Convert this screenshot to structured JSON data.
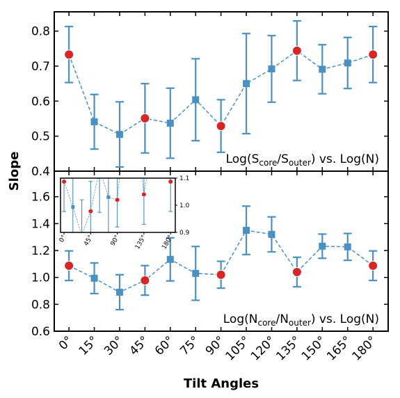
{
  "chart_data": [
    {
      "type": "errorbar",
      "ylabel": "Slope",
      "annotation": [
        "Log(S",
        "core",
        "/S",
        "outer",
        ") vs. Log(N)"
      ],
      "xlim": [
        -8.7,
        189
      ],
      "ylim": [
        0.4,
        0.855
      ],
      "yticks": [
        0.4,
        0.5,
        0.6,
        0.7,
        0.8
      ],
      "x": [
        0,
        15,
        30,
        45,
        60,
        75,
        90,
        105,
        120,
        135,
        150,
        165,
        180
      ],
      "series": [
        {
          "color": "#4a90c2",
          "values": [
            0.733,
            0.541,
            0.505,
            0.551,
            0.537,
            0.604,
            0.529,
            0.65,
            0.692,
            0.744,
            0.691,
            0.709,
            0.733
          ],
          "errors": [
            0.08,
            0.078,
            0.093,
            0.099,
            0.1,
            0.117,
            0.075,
            0.143,
            0.095,
            0.085,
            0.07,
            0.073,
            0.08
          ]
        }
      ],
      "highlight": {
        "color": "#d62728",
        "x": [
          0,
          45,
          90,
          135,
          180
        ]
      }
    },
    {
      "type": "errorbar",
      "xlabel": "Tilt Angles",
      "annotation": [
        "Log(N",
        "core",
        "/N",
        "outer",
        ") vs. Log(N)"
      ],
      "xlim": [
        -8.7,
        189
      ],
      "ylim": [
        0.6,
        1.79
      ],
      "yticks": [
        0.6,
        0.8,
        {
          "value": 1.0,
          "label": "1.0"
        },
        1.2,
        1.4,
        1.6
      ],
      "xticks": [
        {
          "value": 0,
          "label": "0°"
        },
        {
          "value": 15,
          "label": "15°"
        },
        {
          "value": 30,
          "label": "30°"
        },
        {
          "value": 45,
          "label": "45°"
        },
        {
          "value": 60,
          "label": "60°"
        },
        {
          "value": 75,
          "label": "75°"
        },
        {
          "value": 90,
          "label": "90°"
        },
        {
          "value": 105,
          "label": "105°"
        },
        {
          "value": 120,
          "label": "120°"
        },
        {
          "value": 135,
          "label": "135°"
        },
        {
          "value": 150,
          "label": "150°"
        },
        {
          "value": 165,
          "label": "165°"
        },
        {
          "value": 180,
          "label": "180°"
        }
      ],
      "x": [
        0,
        15,
        30,
        45,
        60,
        75,
        90,
        105,
        120,
        135,
        150,
        165,
        180
      ],
      "series": [
        {
          "color": "#4a90c2",
          "values": [
            1.087,
            0.994,
            0.89,
            0.978,
            1.134,
            1.03,
            1.02,
            1.35,
            1.32,
            1.04,
            1.232,
            1.227,
            1.087
          ],
          "errors": [
            0.11,
            0.114,
            0.13,
            0.11,
            0.16,
            0.2,
            0.1,
            0.18,
            0.13,
            0.11,
            0.09,
            0.1,
            0.11
          ]
        }
      ],
      "highlight": {
        "color": "#d62728",
        "x": [
          0,
          45,
          90,
          135,
          180
        ]
      },
      "inset": {
        "xlim": [
          -5.9,
          188
        ],
        "ylim": [
          0.9,
          1.1
        ],
        "xticks": [
          {
            "value": 0,
            "label": "0°"
          },
          {
            "value": 45,
            "label": "45°"
          },
          {
            "value": 90,
            "label": "90°"
          },
          {
            "value": 135,
            "label": "135°"
          },
          {
            "value": 180,
            "label": "180°"
          }
        ],
        "yticks": [
          {
            "value": 0.9,
            "label": "0.9"
          },
          {
            "value": 1.0,
            "label": "1.0"
          },
          {
            "value": 1.1,
            "label": "1.1"
          }
        ]
      }
    }
  ]
}
